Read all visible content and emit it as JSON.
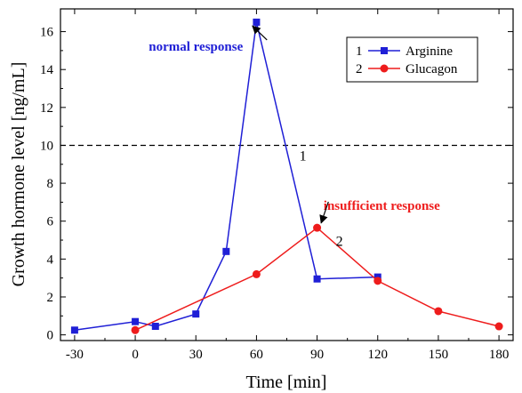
{
  "chart_data": {
    "type": "line",
    "xlabel": "Time [min]",
    "ylabel": "Growth hormone level [ng/mL]",
    "xlim": [
      -37,
      187
    ],
    "ylim": [
      -0.3,
      17.2
    ],
    "xticks": [
      -30,
      0,
      30,
      60,
      90,
      120,
      150,
      180
    ],
    "yticks": [
      0,
      2,
      4,
      6,
      8,
      10,
      12,
      14,
      16
    ],
    "threshold": 10,
    "series": [
      {
        "name": "Arginine",
        "legend_number": "1",
        "color": "#1f1fd6",
        "marker": "square",
        "x": [
          -30,
          0,
          10,
          30,
          45,
          60,
          90,
          120
        ],
        "y": [
          0.25,
          0.7,
          0.45,
          1.1,
          4.4,
          16.5,
          2.95,
          3.05
        ]
      },
      {
        "name": "Glucagon",
        "legend_number": "2",
        "color": "#ee1c1c",
        "marker": "circle",
        "x": [
          0,
          60,
          90,
          120,
          150,
          180
        ],
        "y": [
          0.25,
          3.2,
          5.65,
          2.85,
          1.25,
          0.45
        ]
      }
    ],
    "annotations": [
      {
        "text": "normal response",
        "color": "#1f1fd6",
        "x": 30,
        "y": 15.0,
        "arrow_to_x": 58,
        "arrow_to_y": 16.3
      },
      {
        "text": "insufficient response",
        "color": "#ee1c1c",
        "x": 122,
        "y": 6.6,
        "arrow_to_x": 92,
        "arrow_to_y": 5.9
      }
    ],
    "curve_labels": [
      {
        "text": "1",
        "x": 83,
        "y": 9.2
      },
      {
        "text": "2",
        "x": 101,
        "y": 4.7
      }
    ]
  }
}
